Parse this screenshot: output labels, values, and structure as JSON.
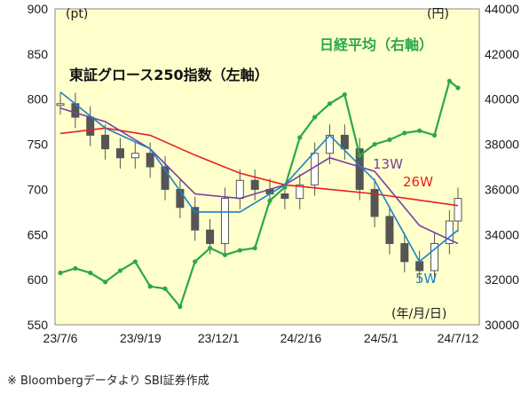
{
  "chart_data": {
    "type": "line",
    "left_unit": "(pt)",
    "right_unit": "(円)",
    "date_unit": "(年/月/日)",
    "x_ticks": [
      "23/7/6",
      "23/9/19",
      "23/12/1",
      "24/2/16",
      "24/5/1",
      "24/7/12"
    ],
    "y_left": {
      "min": 550,
      "max": 900,
      "ticks": [
        "550",
        "600",
        "650",
        "700",
        "750",
        "800",
        "850",
        "900"
      ]
    },
    "y_right": {
      "min": 30000,
      "max": 44000,
      "ticks": [
        "30000",
        "32000",
        "34000",
        "36000",
        "38000",
        "40000",
        "42000",
        "44000"
      ]
    },
    "grid": false,
    "colors": {
      "plot_bg": "#ffffcc",
      "nikkei": "#2aa84a",
      "ma26": "#e8201f",
      "ma13": "#7a3ea0",
      "ma5": "#1a82c8",
      "candle": "#555555"
    },
    "candle_series": {
      "name": "東証グロース250指数（左軸）",
      "axis": "left",
      "x": [
        "23/7/6",
        "23/7/20",
        "23/8/3",
        "23/8/17",
        "23/8/31",
        "23/9/14",
        "23/9/28",
        "23/10/12",
        "23/10/26",
        "23/11/9",
        "23/11/23",
        "23/12/7",
        "23/12/21",
        "24/1/4",
        "24/1/18",
        "24/2/1",
        "24/2/15",
        "24/2/29",
        "24/3/14",
        "24/3/28",
        "24/4/11",
        "24/4/25",
        "24/5/9",
        "24/5/23",
        "24/6/6",
        "24/6/20",
        "24/7/4",
        "24/7/12"
      ],
      "values": [
        795,
        780,
        760,
        745,
        735,
        740,
        725,
        700,
        680,
        655,
        640,
        690,
        710,
        700,
        695,
        690,
        705,
        740,
        760,
        745,
        700,
        670,
        640,
        620,
        610,
        640,
        665,
        690
      ]
    },
    "series": [
      {
        "name": "日経平均（右軸）",
        "axis": "right",
        "color": "#2aa84a",
        "x": [
          "23/7/6",
          "23/7/20",
          "23/8/3",
          "23/8/17",
          "23/8/31",
          "23/9/14",
          "23/9/28",
          "23/10/12",
          "23/10/26",
          "23/11/9",
          "23/11/23",
          "23/12/7",
          "23/12/21",
          "24/1/4",
          "24/1/18",
          "24/2/1",
          "24/2/15",
          "24/2/29",
          "24/3/14",
          "24/3/28",
          "24/4/11",
          "24/4/25",
          "24/5/9",
          "24/5/23",
          "24/6/6",
          "24/6/20",
          "24/7/4",
          "24/7/12"
        ],
        "values": [
          32300,
          32500,
          32300,
          31900,
          32400,
          32800,
          31700,
          31600,
          30800,
          32800,
          33400,
          33100,
          33300,
          33400,
          35500,
          36100,
          38300,
          39200,
          39800,
          40200,
          37500,
          38000,
          38200,
          38500,
          38600,
          38400,
          40800,
          40500
        ]
      },
      {
        "name": "26W",
        "axis": "left",
        "color": "#e8201f",
        "x": [
          "23/7/6",
          "23/8/17",
          "23/9/28",
          "23/11/9",
          "23/12/21",
          "24/2/1",
          "24/3/14",
          "24/4/25",
          "24/6/6",
          "24/7/12"
        ],
        "values": [
          762,
          768,
          760,
          738,
          718,
          705,
          700,
          695,
          688,
          682
        ]
      },
      {
        "name": "13W",
        "axis": "left",
        "color": "#7a3ea0",
        "x": [
          "23/7/6",
          "23/8/17",
          "23/9/28",
          "23/11/9",
          "23/12/21",
          "24/2/1",
          "24/3/14",
          "24/4/25",
          "24/6/6",
          "24/7/12"
        ],
        "values": [
          790,
          775,
          745,
          695,
          690,
          705,
          735,
          720,
          660,
          640
        ]
      },
      {
        "name": "5W",
        "axis": "left",
        "color": "#1a82c8",
        "x": [
          "23/7/6",
          "23/8/17",
          "23/9/28",
          "23/11/9",
          "23/12/21",
          "24/2/1",
          "24/3/14",
          "24/4/25",
          "24/6/6",
          "24/7/12"
        ],
        "values": [
          808,
          768,
          745,
          675,
          675,
          705,
          760,
          710,
          620,
          655
        ]
      }
    ],
    "labels": {
      "growth": "東証グロース250指数（左軸）",
      "nikkei": "日経平均（右軸）",
      "ma13": "13W",
      "ma26": "26W",
      "ma5": "5W"
    }
  },
  "footnote": "※ Bloombergデータより SBI証券作成"
}
